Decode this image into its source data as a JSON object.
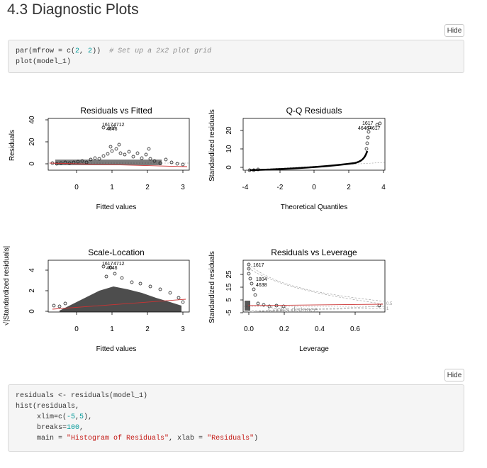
{
  "section": {
    "title": "4.3 Diagnostic Plots"
  },
  "buttons": {
    "hide": "Hide"
  },
  "code1": {
    "line1_pre": "par(mfrow = c(",
    "line1_n1": "2",
    "line1_sep": ", ",
    "line1_n2": "2",
    "line1_post": "))  ",
    "line1_comment": "# Set up a 2x2 plot grid",
    "line2": "plot(model_1)"
  },
  "code2": {
    "line1": "residuals <- residuals(model_1)",
    "line2": "hist(residuals,",
    "line3_pre": "     xlim=c(",
    "line3_v1": "-5",
    "line3_sep": ",",
    "line3_v2": "5",
    "line3_post": "),",
    "line4_pre": "     breaks=",
    "line4_val": "100",
    "line4_post": ",",
    "line5_pre": "     main = ",
    "line5_str1": "\"Histogram of Residuals\"",
    "line5_mid": ", xlab = ",
    "line5_str2": "\"Residuals\"",
    "line5_post": ")"
  },
  "plots": {
    "p1": {
      "title": "Residuals vs Fitted",
      "xlabel": "Fitted values",
      "ylabel": "Residuals",
      "xticks": [
        "0",
        "1",
        "2",
        "3"
      ],
      "yticks": [
        "0",
        "20",
        "40"
      ],
      "labels": {
        "a": "1617",
        "b": "4712",
        "c": "4646"
      }
    },
    "p2": {
      "title": "Q-Q Residuals",
      "xlabel": "Theoretical Quantiles",
      "ylabel": "Standardized residuals",
      "xticks": [
        "-4",
        "-2",
        "0",
        "2",
        "4"
      ],
      "yticks": [
        "0",
        "10",
        "20"
      ],
      "labels": {
        "a": "4617",
        "b": "4646",
        "c": "1617"
      }
    },
    "p3": {
      "title": "Scale-Location",
      "xlabel": "Fitted values",
      "ylabel": "√|Standardized residuals|",
      "xticks": [
        "0",
        "1",
        "2",
        "3"
      ],
      "yticks": [
        "0",
        "2",
        "4"
      ],
      "labels": {
        "a": "1617",
        "b": "4712",
        "c": "4646"
      }
    },
    "p4": {
      "title": "Residuals vs Leverage",
      "xlabel": "Leverage",
      "ylabel": "Standardized residuals",
      "xticks": [
        "0.0",
        "0.2",
        "0.4",
        "0.6"
      ],
      "yticks": [
        "-5",
        "5",
        "15",
        "25"
      ],
      "labels": {
        "a": "1617",
        "b": "1804",
        "c": "4638"
      },
      "cooks": "Cook's distance",
      "c1": "0.5",
      "c2": "1"
    }
  }
}
